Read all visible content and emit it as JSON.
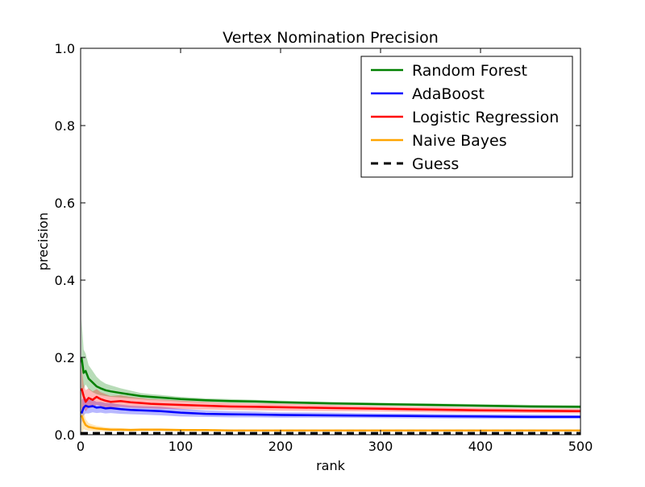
{
  "chart_data": {
    "type": "line",
    "title": "Vertex Nomination Precision",
    "xlabel": "rank",
    "ylabel": "precision",
    "xlim": [
      0,
      500
    ],
    "ylim": [
      0,
      1.0
    ],
    "xticks": [
      0,
      100,
      200,
      300,
      400,
      500
    ],
    "xtick_labels": [
      "0",
      "100",
      "200",
      "300",
      "400",
      "500"
    ],
    "yticks": [
      0,
      0.2,
      0.4,
      0.6,
      0.8,
      1.0
    ],
    "ytick_labels": [
      "0.0",
      "0.2",
      "0.4",
      "0.6",
      "0.8",
      "1.0"
    ],
    "grid": false,
    "legend_position": "top-right",
    "series": [
      {
        "name": "Random Forest",
        "color": "#008000",
        "style": "solid",
        "x": [
          1,
          3,
          5,
          8,
          12,
          16,
          20,
          25,
          30,
          40,
          50,
          60,
          70,
          80,
          100,
          125,
          150,
          175,
          200,
          250,
          300,
          350,
          400,
          450,
          500
        ],
        "values": [
          0.2,
          0.16,
          0.165,
          0.145,
          0.135,
          0.125,
          0.12,
          0.115,
          0.112,
          0.108,
          0.104,
          0.1,
          0.098,
          0.096,
          0.092,
          0.089,
          0.087,
          0.086,
          0.084,
          0.081,
          0.079,
          0.077,
          0.075,
          0.073,
          0.072
        ],
        "lower": [
          0.1,
          0.12,
          0.13,
          0.118,
          0.11,
          0.105,
          0.102,
          0.1,
          0.098,
          0.096,
          0.094,
          0.092,
          0.09,
          0.089,
          0.086,
          0.084,
          0.082,
          0.081,
          0.08,
          0.077,
          0.075,
          0.073,
          0.071,
          0.069,
          0.068
        ],
        "upper": [
          0.3,
          0.22,
          0.21,
          0.18,
          0.165,
          0.15,
          0.14,
          0.132,
          0.128,
          0.12,
          0.114,
          0.108,
          0.105,
          0.103,
          0.098,
          0.094,
          0.092,
          0.09,
          0.088,
          0.085,
          0.083,
          0.081,
          0.079,
          0.077,
          0.076
        ]
      },
      {
        "name": "AdaBoost",
        "color": "#0000ff",
        "style": "solid",
        "x": [
          1,
          3,
          5,
          8,
          12,
          16,
          20,
          25,
          30,
          40,
          50,
          60,
          70,
          80,
          100,
          125,
          150,
          175,
          200,
          250,
          300,
          350,
          400,
          450,
          500
        ],
        "values": [
          0.055,
          0.07,
          0.075,
          0.072,
          0.074,
          0.07,
          0.071,
          0.068,
          0.069,
          0.066,
          0.064,
          0.063,
          0.062,
          0.061,
          0.057,
          0.054,
          0.053,
          0.052,
          0.051,
          0.05,
          0.049,
          0.048,
          0.047,
          0.046,
          0.046
        ],
        "lower": [
          0.03,
          0.05,
          0.055,
          0.055,
          0.058,
          0.056,
          0.057,
          0.055,
          0.056,
          0.054,
          0.053,
          0.052,
          0.051,
          0.05,
          0.047,
          0.046,
          0.045,
          0.045,
          0.044,
          0.044,
          0.043,
          0.042,
          0.041,
          0.041,
          0.041
        ],
        "upper": [
          0.09,
          0.095,
          0.095,
          0.09,
          0.09,
          0.085,
          0.085,
          0.082,
          0.082,
          0.078,
          0.075,
          0.074,
          0.073,
          0.072,
          0.067,
          0.063,
          0.061,
          0.06,
          0.058,
          0.057,
          0.055,
          0.054,
          0.053,
          0.052,
          0.051
        ]
      },
      {
        "name": "Logistic Regression",
        "color": "#ff0000",
        "style": "solid",
        "x": [
          1,
          3,
          5,
          8,
          12,
          16,
          20,
          25,
          30,
          40,
          50,
          60,
          70,
          80,
          100,
          125,
          150,
          175,
          200,
          250,
          300,
          350,
          400,
          450,
          500
        ],
        "values": [
          0.12,
          0.1,
          0.085,
          0.095,
          0.09,
          0.098,
          0.092,
          0.088,
          0.085,
          0.087,
          0.084,
          0.082,
          0.08,
          0.079,
          0.077,
          0.075,
          0.073,
          0.072,
          0.071,
          0.069,
          0.067,
          0.065,
          0.063,
          0.062,
          0.061
        ],
        "lower": [
          0.06,
          0.07,
          0.06,
          0.07,
          0.07,
          0.078,
          0.074,
          0.071,
          0.07,
          0.072,
          0.07,
          0.069,
          0.068,
          0.067,
          0.066,
          0.065,
          0.064,
          0.063,
          0.062,
          0.061,
          0.06,
          0.058,
          0.057,
          0.056,
          0.055
        ],
        "upper": [
          0.18,
          0.13,
          0.115,
          0.12,
          0.112,
          0.118,
          0.11,
          0.105,
          0.1,
          0.102,
          0.098,
          0.095,
          0.092,
          0.091,
          0.088,
          0.085,
          0.082,
          0.081,
          0.08,
          0.077,
          0.074,
          0.072,
          0.07,
          0.068,
          0.067
        ]
      },
      {
        "name": "Naive Bayes",
        "color": "#ffa500",
        "style": "solid",
        "x": [
          1,
          3,
          5,
          8,
          12,
          16,
          20,
          25,
          30,
          40,
          50,
          60,
          70,
          80,
          100,
          125,
          150,
          175,
          200,
          250,
          300,
          350,
          400,
          450,
          500
        ],
        "values": [
          0.05,
          0.035,
          0.025,
          0.02,
          0.018,
          0.016,
          0.015,
          0.014,
          0.013,
          0.013,
          0.012,
          0.013,
          0.013,
          0.013,
          0.012,
          0.012,
          0.011,
          0.011,
          0.011,
          0.011,
          0.011,
          0.011,
          0.011,
          0.011,
          0.011
        ],
        "lower": [
          0.0,
          0.015,
          0.012,
          0.01,
          0.01,
          0.009,
          0.009,
          0.009,
          0.009,
          0.009,
          0.009,
          0.009,
          0.009,
          0.009,
          0.009,
          0.009,
          0.009,
          0.009,
          0.009,
          0.009,
          0.009,
          0.009,
          0.009,
          0.009,
          0.009
        ],
        "upper": [
          0.1,
          0.06,
          0.04,
          0.03,
          0.026,
          0.023,
          0.021,
          0.019,
          0.018,
          0.017,
          0.016,
          0.016,
          0.016,
          0.016,
          0.015,
          0.014,
          0.013,
          0.013,
          0.013,
          0.013,
          0.013,
          0.013,
          0.013,
          0.013,
          0.013
        ]
      },
      {
        "name": "Guess",
        "color": "#000000",
        "style": "dashed",
        "x": [
          0,
          500
        ],
        "values": [
          0.004,
          0.004
        ]
      }
    ]
  }
}
